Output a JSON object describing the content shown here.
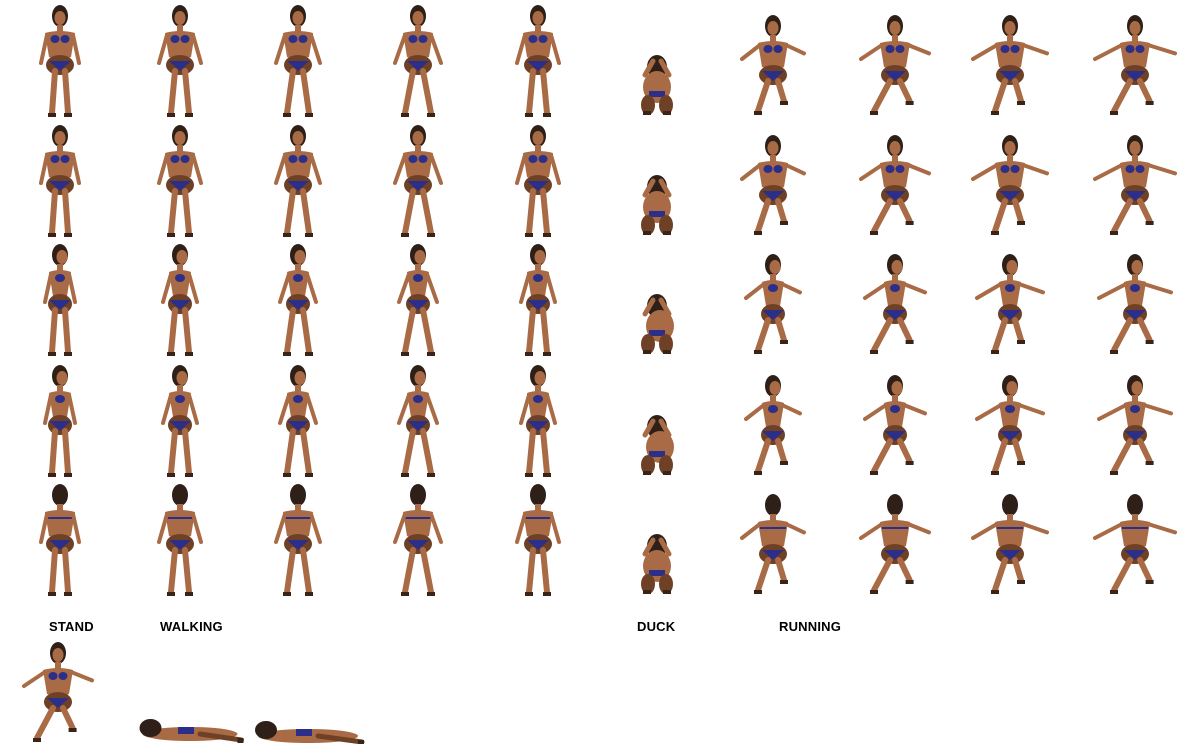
{
  "labels": {
    "stand": "STAND",
    "walking": "WALKING",
    "duck": "DUCK",
    "running": "RUNNING"
  },
  "colors": {
    "background": "#ffffff",
    "skin": "#a86b45",
    "skin_shadow": "#6e4026",
    "hair": "#2e2018",
    "bikini": "#2b2f8a",
    "shoe": "#3a2418",
    "label": "#000000"
  },
  "animations": [
    {
      "name": "stand",
      "frames": 5,
      "directions": 5
    },
    {
      "name": "walking",
      "frames": 5,
      "directions": 5
    },
    {
      "name": "duck",
      "frames": 1,
      "directions": 5
    },
    {
      "name": "running",
      "frames": 4,
      "directions": 5
    },
    {
      "name": "death",
      "frames": 3,
      "directions": 1
    }
  ]
}
